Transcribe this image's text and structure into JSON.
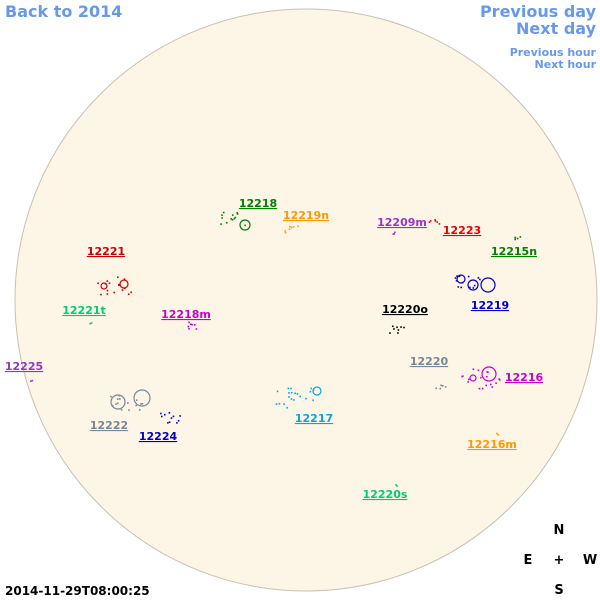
{
  "nav": {
    "back": "Back to 2014",
    "previous_day": "Previous day",
    "next_day": "Next day",
    "previous_hour": "Previous hour",
    "next_hour": "Next hour"
  },
  "regions": [
    {
      "label": "12218",
      "color": "#008000"
    },
    {
      "label": "12219n",
      "color": "#ff9900"
    },
    {
      "label": "12209m",
      "color": "#9933cc"
    },
    {
      "label": "12223",
      "color": "#ee0000"
    },
    {
      "label": "12215n",
      "color": "#008000"
    },
    {
      "label": "12221",
      "color": "#cc0000"
    },
    {
      "label": "12219",
      "color": "#0000cc"
    },
    {
      "label": "12220o",
      "color": "#000000"
    },
    {
      "label": "12221t",
      "color": "#00cc77"
    },
    {
      "label": "12218m",
      "color": "#cc00cc"
    },
    {
      "label": "12220",
      "color": "#778899"
    },
    {
      "label": "12225",
      "color": "#9933cc"
    },
    {
      "label": "12216",
      "color": "#cc00cc"
    },
    {
      "label": "12217",
      "color": "#00aadd"
    },
    {
      "label": "12222",
      "color": "#778899"
    },
    {
      "label": "12224",
      "color": "#0000cc"
    },
    {
      "label": "12216m",
      "color": "#ff9900"
    },
    {
      "label": "12220s",
      "color": "#00cc77"
    }
  ],
  "compass": {
    "north": "N",
    "east": "E",
    "center": "+",
    "west": "W",
    "south": "S"
  },
  "timestamp": "2014-11-29T08:00:25"
}
